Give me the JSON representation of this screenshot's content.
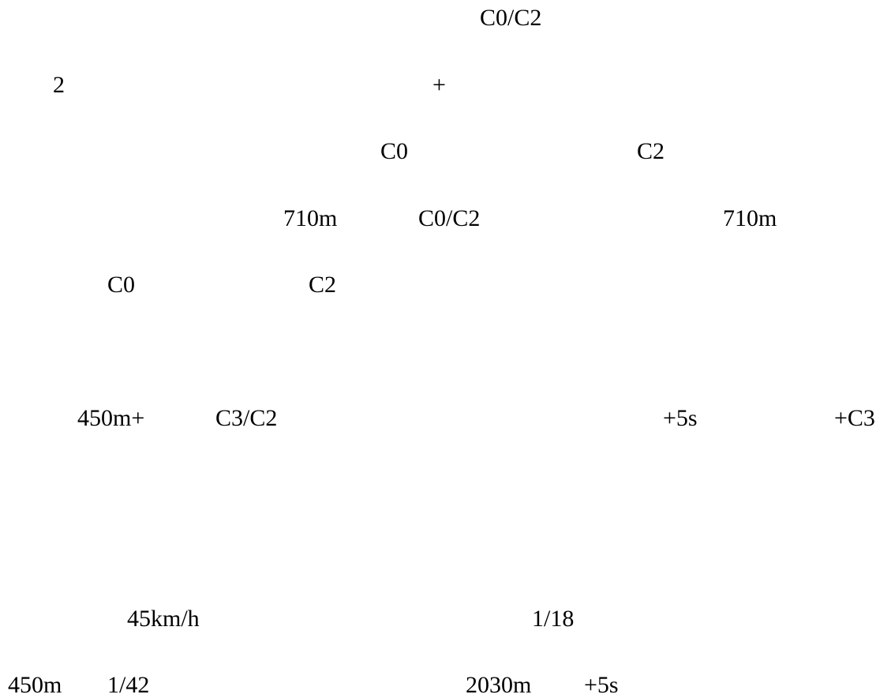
{
  "document": {
    "lines": [
      {
        "fragments": [
          "C0/C2"
        ]
      },
      {
        "fragments": [
          "2",
          "+"
        ]
      },
      {
        "fragments": [
          "C0",
          "C2"
        ]
      },
      {
        "fragments": [
          "710m",
          "C0/C2",
          "710m"
        ]
      },
      {
        "fragments": [
          "C0",
          "C2"
        ]
      },
      {
        "fragments": [
          "450m+",
          "C3/C2",
          "+5s",
          "+C3"
        ]
      },
      {
        "fragments": [
          "45km/h",
          "1/18"
        ]
      },
      {
        "fragments": [
          "450m",
          "1/42",
          "2030m",
          "+5s"
        ]
      }
    ]
  }
}
